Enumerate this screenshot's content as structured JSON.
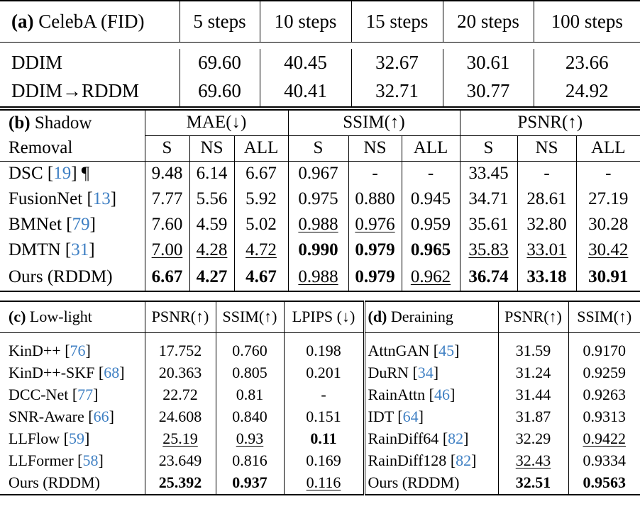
{
  "table_a": {
    "tag": "(a)",
    "title": "CelebA (FID)",
    "columns": [
      "5 steps",
      "10 steps",
      "15 steps",
      "20 steps",
      "100 steps"
    ],
    "rows": [
      {
        "name": "DDIM",
        "values": [
          "69.60",
          "40.45",
          "32.67",
          "30.61",
          "23.66"
        ]
      },
      {
        "name": "DDIM→RDDM",
        "values": [
          "69.60",
          "40.41",
          "32.71",
          "30.77",
          "24.92"
        ]
      }
    ]
  },
  "table_b": {
    "tag": "(b)",
    "title_line1": "Shadow",
    "title_line2": "Removal",
    "groups": [
      "MAE(↓)",
      "SSIM(↑)",
      "PSNR(↑)"
    ],
    "subcolumns": [
      "S",
      "NS",
      "ALL",
      "S",
      "NS",
      "ALL",
      "S",
      "NS",
      "ALL"
    ],
    "rows": [
      {
        "name": "DSC",
        "ref": "19",
        "suffix": " ¶",
        "values": [
          "9.48",
          "6.14",
          "6.67",
          "0.967",
          "-",
          "-",
          "33.45",
          "-",
          "-"
        ]
      },
      {
        "name": "FusionNet",
        "ref": "13",
        "suffix": "",
        "values": [
          "7.77",
          "5.56",
          "5.92",
          "0.975",
          "0.880",
          "0.945",
          "34.71",
          "28.61",
          "27.19"
        ]
      },
      {
        "name": "BMNet",
        "ref": "79",
        "suffix": "",
        "values": [
          "7.60",
          "4.59",
          "5.02",
          "0.988",
          "0.976",
          "0.959",
          "35.61",
          "32.80",
          "30.28"
        ]
      },
      {
        "name": "DMTN",
        "ref": "31",
        "suffix": "",
        "values": [
          "7.00",
          "4.28",
          "4.72",
          "0.990",
          "0.979",
          "0.965",
          "35.83",
          "33.01",
          "30.42"
        ]
      },
      {
        "name": "Ours (RDDM)",
        "ref": "",
        "suffix": "",
        "values": [
          "6.67",
          "4.27",
          "4.67",
          "0.988",
          "0.979",
          "0.962",
          "36.74",
          "33.18",
          "30.91"
        ]
      }
    ]
  },
  "table_c": {
    "tag": "(c)",
    "title": "Low-light",
    "columns": [
      "PSNR(↑)",
      "SSIM(↑)",
      "LPIPS (↓)"
    ],
    "rows": [
      {
        "name": "KinD++",
        "ref": "76",
        "values": [
          "17.752",
          "0.760",
          "0.198"
        ]
      },
      {
        "name": "KinD++-SKF",
        "ref": "68",
        "values": [
          "20.363",
          "0.805",
          "0.201"
        ]
      },
      {
        "name": "DCC-Net",
        "ref": "77",
        "values": [
          "22.72",
          "0.81",
          "-"
        ]
      },
      {
        "name": "SNR-Aware",
        "ref": "66",
        "values": [
          "24.608",
          "0.840",
          "0.151"
        ]
      },
      {
        "name": "LLFlow",
        "ref": "59",
        "values": [
          "25.19",
          "0.93",
          "0.11"
        ]
      },
      {
        "name": "LLFormer",
        "ref": "58",
        "values": [
          "23.649",
          "0.816",
          "0.169"
        ]
      },
      {
        "name": "Ours (RDDM)",
        "ref": "",
        "values": [
          "25.392",
          "0.937",
          "0.116"
        ]
      }
    ]
  },
  "table_d": {
    "tag": "(d)",
    "title": "Deraining",
    "columns": [
      "PSNR(↑)",
      "SSIM(↑)"
    ],
    "rows": [
      {
        "name": "AttnGAN",
        "ref": "45",
        "values": [
          "31.59",
          "0.9170"
        ]
      },
      {
        "name": "DuRN",
        "ref": "34",
        "values": [
          "31.24",
          "0.9259"
        ]
      },
      {
        "name": "RainAttn",
        "ref": "46",
        "values": [
          "31.44",
          "0.9263"
        ]
      },
      {
        "name": "IDT",
        "ref": "64",
        "values": [
          "31.87",
          "0.9313"
        ]
      },
      {
        "name": "RainDiff64",
        "ref": "82",
        "values": [
          "32.29",
          "0.9422"
        ]
      },
      {
        "name": "RainDiff128",
        "ref": "82",
        "values": [
          "32.43",
          "0.9334"
        ]
      },
      {
        "name": "Ours (RDDM)",
        "ref": "",
        "values": [
          "32.51",
          "0.9563"
        ]
      }
    ]
  }
}
